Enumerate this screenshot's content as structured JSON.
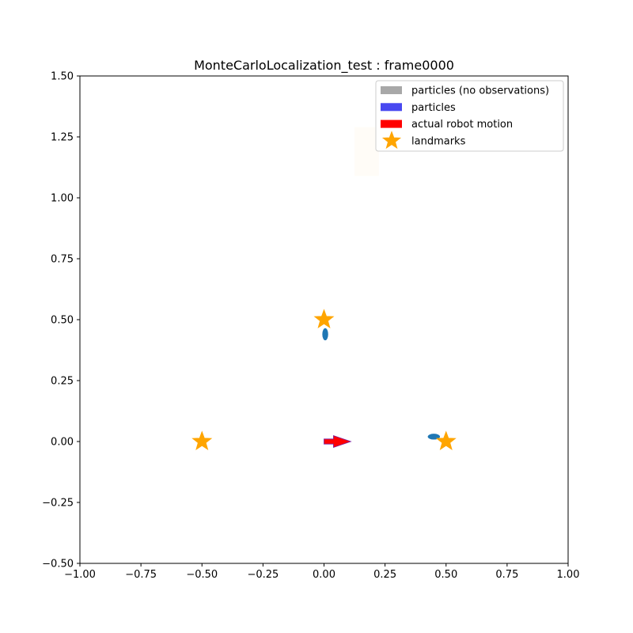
{
  "chart_data": {
    "type": "scatter",
    "title": "MonteCarloLocalization_test : frame0000",
    "xlabel": "",
    "ylabel": "",
    "xlim": [
      -1.0,
      1.0
    ],
    "ylim": [
      -0.5,
      1.5
    ],
    "grid": false,
    "x_ticks": [
      "−1.00",
      "−0.75",
      "−0.50",
      "−0.25",
      "0.00",
      "0.25",
      "0.50",
      "0.75",
      "1.00"
    ],
    "x_tick_values": [
      -1.0,
      -0.75,
      -0.5,
      -0.25,
      0.0,
      0.25,
      0.5,
      0.75,
      1.0
    ],
    "y_ticks": [
      "−0.50",
      "−0.25",
      "0.00",
      "0.25",
      "0.50",
      "0.75",
      "1.00",
      "1.25",
      "1.50"
    ],
    "y_tick_values": [
      -0.5,
      -0.25,
      0.0,
      0.25,
      0.5,
      0.75,
      1.0,
      1.25,
      1.5
    ],
    "legend": {
      "placement": "top-right",
      "entries": [
        {
          "label": "particles (no observations)",
          "color": "#a8a8a8",
          "kind": "patch"
        },
        {
          "label": "particles",
          "color": "#4848f0",
          "kind": "patch"
        },
        {
          "label": "actual robot motion",
          "color": "#ff0000",
          "kind": "patch"
        },
        {
          "label": "landmarks",
          "color": "#ffa500",
          "kind": "star"
        }
      ]
    },
    "landmarks": [
      {
        "x": -0.5,
        "y": 0.0
      },
      {
        "x": 0.0,
        "y": 0.5
      },
      {
        "x": 0.5,
        "y": 0.0
      }
    ],
    "observation_clusters": [
      {
        "x": 0.005,
        "y": 0.44,
        "rx": 0.012,
        "ry": 0.025,
        "color": "#1f77b4"
      },
      {
        "x": 0.45,
        "y": 0.02,
        "rx": 0.025,
        "ry": 0.012,
        "color": "#1f77b4"
      }
    ],
    "robot_motion": {
      "x": 0.0,
      "y": 0.0,
      "dx": 0.11,
      "dy": 0.0,
      "color": "#ff0000",
      "edge": "#7a1fa2"
    },
    "faint_region": {
      "x0": 0.125,
      "x1": 0.225,
      "y0": 1.09,
      "y1": 1.29,
      "color": "#fffcf7"
    }
  }
}
